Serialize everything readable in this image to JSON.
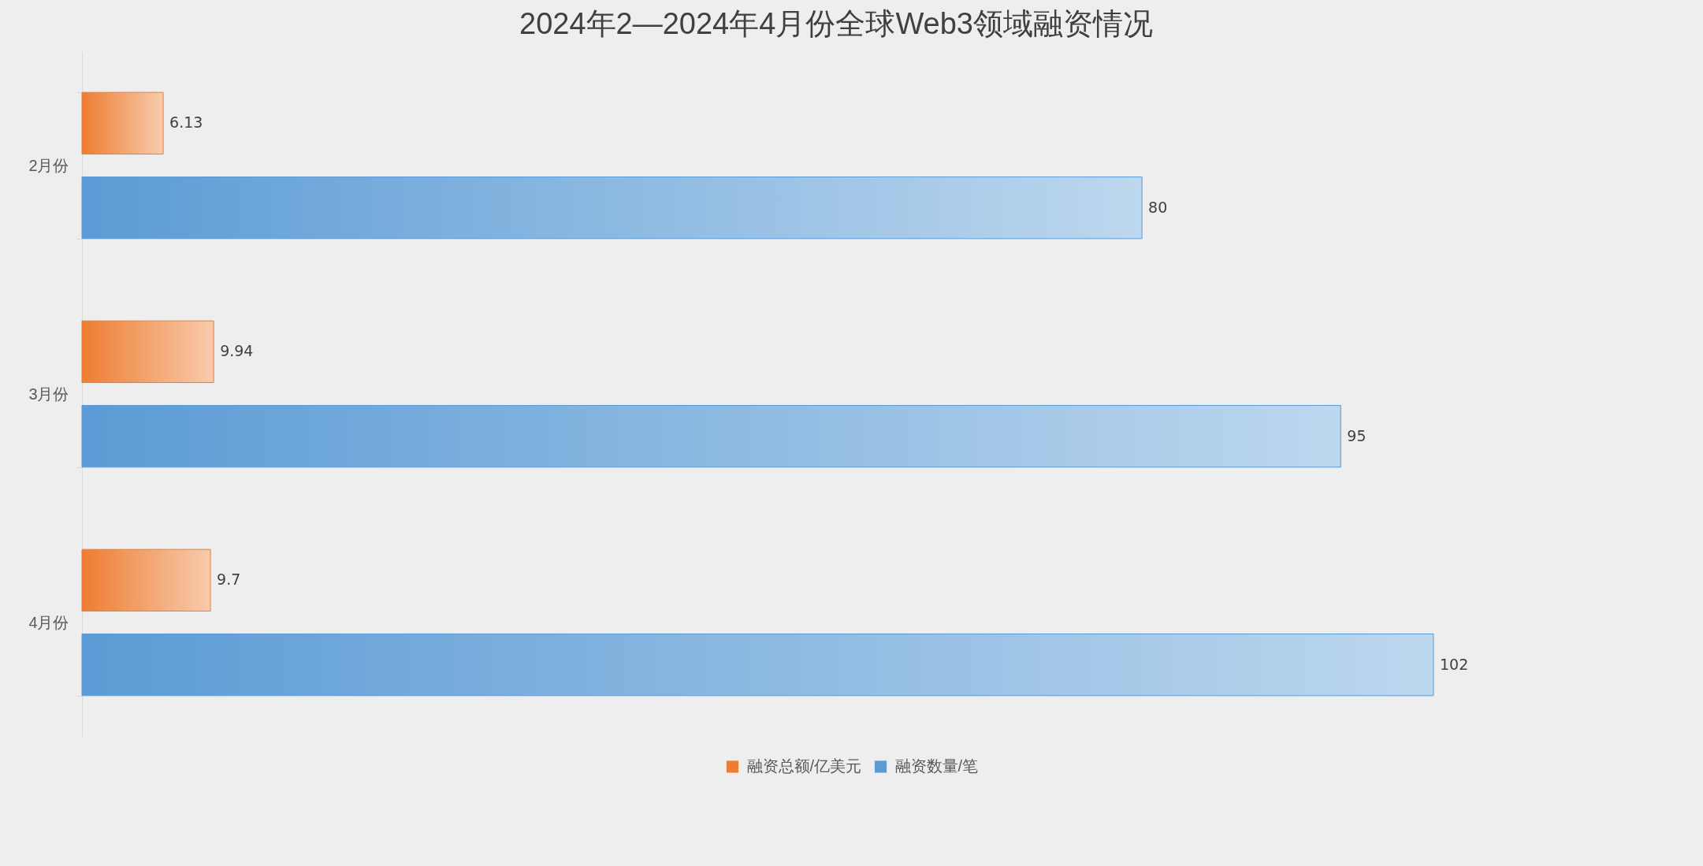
{
  "chart_data": {
    "type": "bar",
    "orientation": "horizontal",
    "title": "2024年2—2024年4月份全球Web3领域融资情况",
    "categories": [
      "2月份",
      "3月份",
      "4月份"
    ],
    "series": [
      {
        "name": "融资总额/亿美元",
        "color": "#ed7d31",
        "values": [
          6.13,
          9.94,
          9.7
        ]
      },
      {
        "name": "融资数量/笔",
        "color": "#5b9bd5",
        "values": [
          80,
          95,
          102
        ]
      }
    ],
    "data_labels": true,
    "legend": "bottom",
    "tick_labels": "y"
  }
}
